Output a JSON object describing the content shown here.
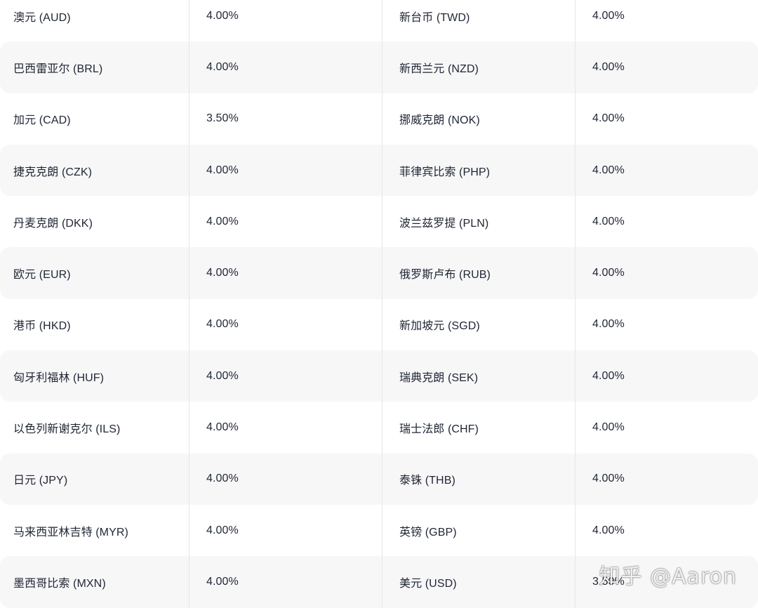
{
  "rows": [
    {
      "c1": "澳元 (AUD)",
      "r1": "4.00%",
      "c2": "新台币 (TWD)",
      "r2": "4.00%"
    },
    {
      "c1": "巴西雷亚尔 (BRL)",
      "r1": "4.00%",
      "c2": "新西兰元 (NZD)",
      "r2": "4.00%"
    },
    {
      "c1": "加元 (CAD)",
      "r1": "3.50%",
      "c2": "挪威克朗 (NOK)",
      "r2": "4.00%"
    },
    {
      "c1": "捷克克朗 (CZK)",
      "r1": "4.00%",
      "c2": "菲律宾比索 (PHP)",
      "r2": "4.00%"
    },
    {
      "c1": "丹麦克朗 (DKK)",
      "r1": "4.00%",
      "c2": "波兰兹罗提 (PLN)",
      "r2": "4.00%"
    },
    {
      "c1": "欧元 (EUR)",
      "r1": "4.00%",
      "c2": "俄罗斯卢布 (RUB)",
      "r2": "4.00%"
    },
    {
      "c1": "港币 (HKD)",
      "r1": "4.00%",
      "c2": "新加坡元 (SGD)",
      "r2": "4.00%"
    },
    {
      "c1": "匈牙利福林 (HUF)",
      "r1": "4.00%",
      "c2": "瑞典克朗 (SEK)",
      "r2": "4.00%"
    },
    {
      "c1": "以色列新谢克尔 (ILS)",
      "r1": "4.00%",
      "c2": "瑞士法郎 (CHF)",
      "r2": "4.00%"
    },
    {
      "c1": "日元 (JPY)",
      "r1": "4.00%",
      "c2": "泰铢 (THB)",
      "r2": "4.00%"
    },
    {
      "c1": "马来西亚林吉特 (MYR)",
      "r1": "4.00%",
      "c2": "英镑 (GBP)",
      "r2": "4.00%"
    },
    {
      "c1": "墨西哥比索 (MXN)",
      "r1": "4.00%",
      "c2": "美元 (USD)",
      "r2": "3.50%"
    }
  ],
  "watermark": "知乎 @Aaron"
}
